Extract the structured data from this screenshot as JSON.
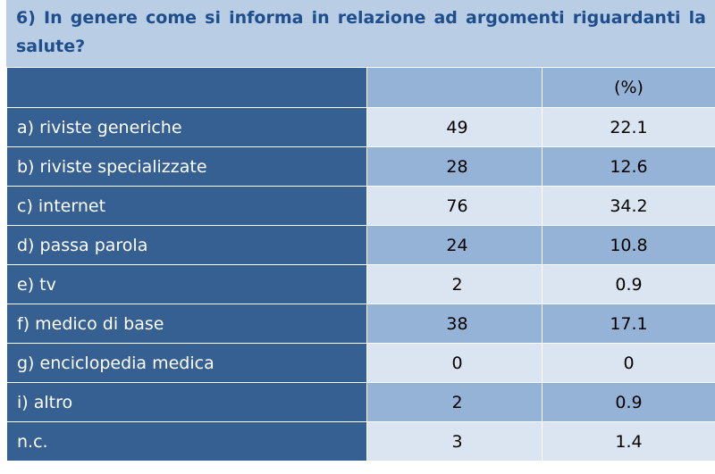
{
  "title": "6) In genere come si informa in relazione ad argomenti riguardanti la salute?",
  "table": {
    "header": {
      "label": "",
      "count": "",
      "percent": "(%)"
    },
    "rows": [
      {
        "label": "a) riviste generiche",
        "count": "49",
        "percent": "22.1"
      },
      {
        "label": "b) riviste specializzate",
        "count": "28",
        "percent": "12.6"
      },
      {
        "label": "c) internet",
        "count": "76",
        "percent": "34.2"
      },
      {
        "label": "d) passa parola",
        "count": "24",
        "percent": "10.8"
      },
      {
        "label": "e) tv",
        "count": "2",
        "percent": "0.9"
      },
      {
        "label": "f) medico di base",
        "count": "38",
        "percent": "17.1"
      },
      {
        "label": "g) enciclopedia medica",
        "count": "0",
        "percent": "0"
      },
      {
        "label": "i) altro",
        "count": "2",
        "percent": "0.9"
      },
      {
        "label": "n.c.",
        "count": "3",
        "percent": "1.4"
      }
    ]
  },
  "colors": {
    "title_bg": "#b9cde5",
    "title_text": "#1f4e8c",
    "label_bg": "#366092",
    "row_light": "#dbe5f1",
    "row_dark": "#95b3d7"
  }
}
